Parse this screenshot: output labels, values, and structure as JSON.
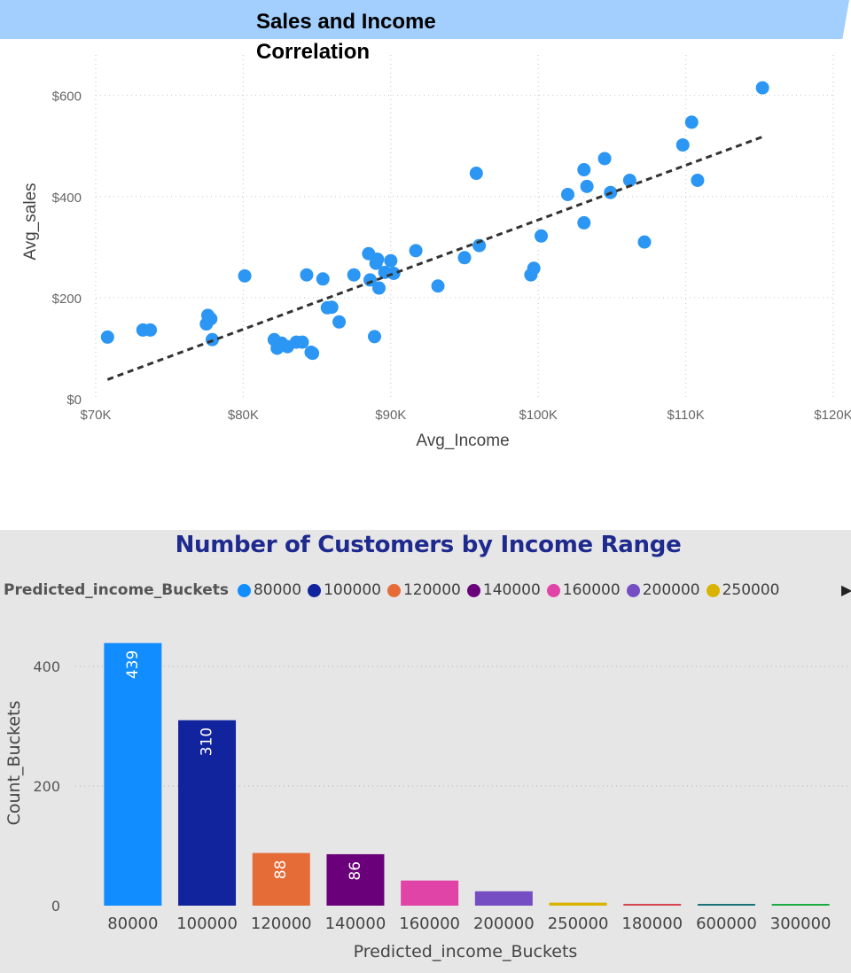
{
  "chart_data": [
    {
      "type": "scatter",
      "title": "Sales and Income Correlation",
      "xlabel": "Avg_Income",
      "ylabel": "Avg_sales",
      "xlim": [
        70000,
        120000
      ],
      "ylim": [
        0,
        680
      ],
      "x_ticks": [
        70000,
        80000,
        90000,
        100000,
        110000,
        120000
      ],
      "x_tick_labels": [
        "$70K",
        "$80K",
        "$90K",
        "$100K",
        "$110K",
        "$120K"
      ],
      "y_ticks": [
        0,
        200,
        400,
        600
      ],
      "y_tick_labels": [
        "$0",
        "$200",
        "$400",
        "$600"
      ],
      "grid": true,
      "point_color": "#2b96f3",
      "trend_line": {
        "x": [
          70800,
          115200
        ],
        "y": [
          38,
          518
        ],
        "style": "dashed",
        "color": "#333333"
      },
      "points": [
        {
          "x": 70800,
          "y": 122
        },
        {
          "x": 73200,
          "y": 136
        },
        {
          "x": 73700,
          "y": 136
        },
        {
          "x": 77500,
          "y": 148
        },
        {
          "x": 77600,
          "y": 165
        },
        {
          "x": 77800,
          "y": 158
        },
        {
          "x": 77900,
          "y": 117
        },
        {
          "x": 80100,
          "y": 243
        },
        {
          "x": 82100,
          "y": 117
        },
        {
          "x": 82300,
          "y": 100
        },
        {
          "x": 82600,
          "y": 110
        },
        {
          "x": 83000,
          "y": 103
        },
        {
          "x": 83600,
          "y": 112
        },
        {
          "x": 84000,
          "y": 112
        },
        {
          "x": 84300,
          "y": 245
        },
        {
          "x": 84600,
          "y": 92
        },
        {
          "x": 84700,
          "y": 90
        },
        {
          "x": 85400,
          "y": 237
        },
        {
          "x": 85700,
          "y": 180
        },
        {
          "x": 86000,
          "y": 181
        },
        {
          "x": 86500,
          "y": 152
        },
        {
          "x": 87500,
          "y": 245
        },
        {
          "x": 88500,
          "y": 287
        },
        {
          "x": 88600,
          "y": 235
        },
        {
          "x": 88900,
          "y": 123
        },
        {
          "x": 89000,
          "y": 268
        },
        {
          "x": 89100,
          "y": 276
        },
        {
          "x": 89200,
          "y": 219
        },
        {
          "x": 89600,
          "y": 250
        },
        {
          "x": 90000,
          "y": 273
        },
        {
          "x": 90200,
          "y": 248
        },
        {
          "x": 91700,
          "y": 293
        },
        {
          "x": 93200,
          "y": 223
        },
        {
          "x": 95000,
          "y": 279
        },
        {
          "x": 95800,
          "y": 446
        },
        {
          "x": 96000,
          "y": 303
        },
        {
          "x": 99500,
          "y": 245
        },
        {
          "x": 99700,
          "y": 258
        },
        {
          "x": 100200,
          "y": 322
        },
        {
          "x": 102000,
          "y": 404
        },
        {
          "x": 103100,
          "y": 348
        },
        {
          "x": 103100,
          "y": 453
        },
        {
          "x": 103300,
          "y": 420
        },
        {
          "x": 104500,
          "y": 475
        },
        {
          "x": 104900,
          "y": 408
        },
        {
          "x": 106200,
          "y": 432
        },
        {
          "x": 107200,
          "y": 310
        },
        {
          "x": 109800,
          "y": 502
        },
        {
          "x": 110400,
          "y": 547
        },
        {
          "x": 110800,
          "y": 432
        },
        {
          "x": 115200,
          "y": 615
        }
      ]
    },
    {
      "type": "bar",
      "title": "Number of Customers by Income Range",
      "xlabel": "Predicted_income_Buckets",
      "ylabel": "Count_Buckets",
      "ylim": [
        0,
        480
      ],
      "y_ticks": [
        0,
        200,
        400
      ],
      "grid": true,
      "legend": {
        "title": "Predicted_income_Buckets",
        "placement": "top",
        "items": [
          {
            "label": "80000",
            "color": "#118dff"
          },
          {
            "label": "100000",
            "color": "#12239e"
          },
          {
            "label": "120000",
            "color": "#e66c37"
          },
          {
            "label": "140000",
            "color": "#6b007b"
          },
          {
            "label": "160000",
            "color": "#e044a7"
          },
          {
            "label": "200000",
            "color": "#744ec2"
          },
          {
            "label": "250000",
            "color": "#d9b300"
          }
        ],
        "more_icon": "chevron-right-icon"
      },
      "categories": [
        "80000",
        "100000",
        "120000",
        "140000",
        "160000",
        "200000",
        "250000",
        "180000",
        "600000",
        "300000"
      ],
      "values": [
        439,
        310,
        88,
        86,
        42,
        24,
        5,
        3,
        2,
        1
      ],
      "colors": [
        "#118dff",
        "#12239e",
        "#e66c37",
        "#6b007b",
        "#e044a7",
        "#744ec2",
        "#d9b300",
        "#d64550",
        "#197278",
        "#1aab40"
      ],
      "data_labels": [
        "439",
        "310",
        "88",
        "86",
        "",
        "",
        "",
        "",
        "",
        ""
      ]
    }
  ]
}
